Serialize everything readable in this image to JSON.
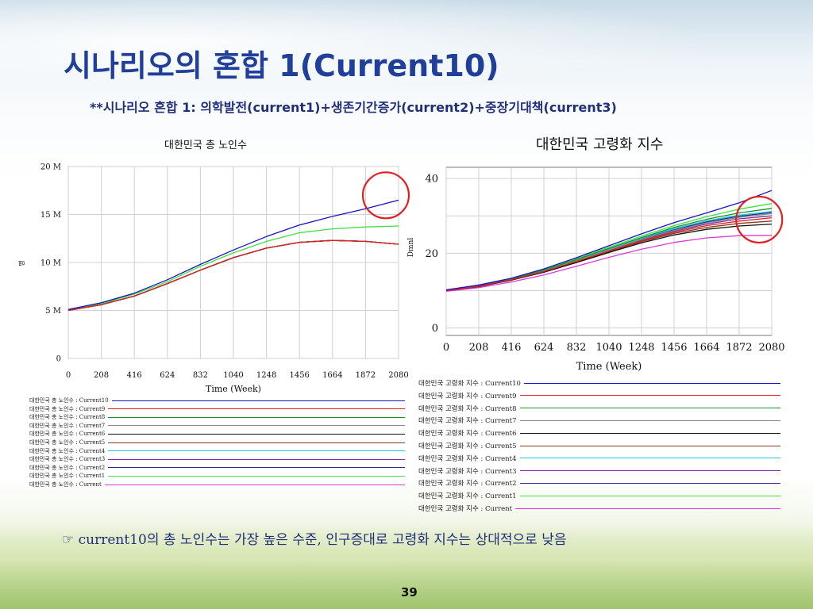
{
  "slide": {
    "title": "시나리오의 혼합 1(Current10)",
    "subtitle": "**시나리오 혼합 1: 의학발전(current1)+생존기간증가(current2)+중장기대책(current3)",
    "footnote": "☞ current10의 총 노인수는 가장 높은 수준, 인구증대로 고령화 지수는 상대적으로 낮음",
    "page_number": "39"
  },
  "chart_data": [
    {
      "type": "line",
      "title": "대한민국 총 노인수",
      "xlabel": "Time (Week)",
      "ylabel": "명",
      "xlim": [
        0,
        2080
      ],
      "ylim": [
        0,
        20000000
      ],
      "x_ticks": [
        "0",
        "208",
        "416",
        "624",
        "832",
        "1040",
        "1248",
        "1456",
        "1664",
        "1872",
        "2080"
      ],
      "y_ticks": [
        {
          "value": 0,
          "label": "0"
        },
        {
          "value": 5000000,
          "label": "5 M"
        },
        {
          "value": 10000000,
          "label": "10 M"
        },
        {
          "value": 15000000,
          "label": "15 M"
        },
        {
          "value": 20000000,
          "label": "20 M"
        }
      ],
      "grid": true,
      "x": [
        0,
        208,
        416,
        624,
        832,
        1040,
        1248,
        1456,
        1664,
        1872,
        2080
      ],
      "series": [
        {
          "name": "대한민국 총 노인수 : Current10",
          "color": "#1515c8",
          "values": [
            5100000,
            5800000,
            6800000,
            8200000,
            9800000,
            11300000,
            12700000,
            13900000,
            14800000,
            15600000,
            16500000
          ]
        },
        {
          "name": "대한민국 총 노인수 : Current9",
          "color": "#e02020",
          "values": [
            5000000,
            5600000,
            6500000,
            7800000,
            9200000,
            10500000,
            11500000,
            12100000,
            12300000,
            12200000,
            11900000
          ]
        },
        {
          "name": "대한민국 총 노인수 : Current8",
          "color": "#1a8f2e",
          "values": [
            5000000,
            5600000,
            6500000,
            7800000,
            9200000,
            10500000,
            11500000,
            12100000,
            12300000,
            12200000,
            11900000
          ]
        },
        {
          "name": "대한민국 총 노인수 : Current7",
          "color": "#8a8a8a",
          "values": [
            5000000,
            5600000,
            6500000,
            7800000,
            9200000,
            10500000,
            11500000,
            12100000,
            12300000,
            12200000,
            11900000
          ]
        },
        {
          "name": "대한민국 총 노인수 : Current6",
          "color": "#111111",
          "values": [
            5000000,
            5600000,
            6500000,
            7800000,
            9200000,
            10500000,
            11500000,
            12100000,
            12300000,
            12200000,
            11900000
          ]
        },
        {
          "name": "대한민국 총 노인수 : Current5",
          "color": "#8b3a1f",
          "values": [
            5000000,
            5600000,
            6500000,
            7800000,
            9200000,
            10500000,
            11500000,
            12100000,
            12300000,
            12200000,
            11900000
          ]
        },
        {
          "name": "대한민국 총 노인수 : Current4",
          "color": "#19c9d6",
          "values": [
            5000000,
            5600000,
            6500000,
            7800000,
            9200000,
            10500000,
            11500000,
            12100000,
            12300000,
            12200000,
            11900000
          ]
        },
        {
          "name": "대한민국 총 노인수 : Current3",
          "color": "#7a2fa8",
          "values": [
            5000000,
            5600000,
            6500000,
            7800000,
            9200000,
            10500000,
            11500000,
            12100000,
            12300000,
            12200000,
            11900000
          ]
        },
        {
          "name": "대한민국 총 노인수 : Current2",
          "color": "#2a2a90",
          "values": [
            5000000,
            5600000,
            6500000,
            7800000,
            9200000,
            10500000,
            11500000,
            12100000,
            12300000,
            12200000,
            11900000
          ]
        },
        {
          "name": "대한민국 총 노인수 : Current1",
          "color": "#3fe03f",
          "values": [
            5050000,
            5700000,
            6700000,
            8000000,
            9600000,
            11000000,
            12200000,
            13100000,
            13500000,
            13700000,
            13800000
          ]
        },
        {
          "name": "대한민국 총 노인수 : Current",
          "color": "#d83cd8",
          "values": [
            5000000,
            5600000,
            6500000,
            7800000,
            9200000,
            10500000,
            11500000,
            12100000,
            12300000,
            12200000,
            11900000
          ]
        }
      ],
      "annotations": [
        {
          "type": "circle",
          "color": "#e02020",
          "x": 2000,
          "y": 17000000
        }
      ]
    },
    {
      "type": "line",
      "title": "대한민국 고령화 지수",
      "xlabel": "Time (Week)",
      "ylabel": "Dmnl",
      "xlim": [
        0,
        2080
      ],
      "ylim": [
        -2,
        43
      ],
      "x_ticks": [
        "0",
        "208",
        "416",
        "624",
        "832",
        "1040",
        "1248",
        "1456",
        "1664",
        "1872",
        "2080"
      ],
      "y_ticks": [
        {
          "value": 0,
          "label": "0"
        },
        {
          "value": 20,
          "label": "20"
        },
        {
          "value": 40,
          "label": "40"
        }
      ],
      "grid": true,
      "x": [
        0,
        208,
        416,
        624,
        832,
        1040,
        1248,
        1456,
        1664,
        1872,
        2080
      ],
      "series": [
        {
          "name": "대한민국 고령화 지수 : Current10",
          "color": "#1515c8",
          "values": [
            10.2,
            11.5,
            13.3,
            15.8,
            18.8,
            22.0,
            25.2,
            28.2,
            30.8,
            33.5,
            36.8
          ]
        },
        {
          "name": "대한민국 고령화 지수 : Current9",
          "color": "#e02020",
          "values": [
            10.0,
            11.2,
            12.9,
            15.1,
            17.8,
            20.6,
            23.3,
            25.6,
            27.4,
            28.6,
            29.5
          ]
        },
        {
          "name": "대한민국 고령화 지수 : Current8",
          "color": "#1a8f2e",
          "values": [
            10.0,
            11.3,
            13.1,
            15.5,
            18.3,
            21.3,
            24.2,
            26.9,
            29.1,
            30.8,
            32.0
          ]
        },
        {
          "name": "대한민국 고령화 지수 : Current7",
          "color": "#8a8a8a",
          "values": [
            10.0,
            11.2,
            13.0,
            15.3,
            18.0,
            20.9,
            23.7,
            26.1,
            28.1,
            29.6,
            30.6
          ]
        },
        {
          "name": "대한민국 고령화 지수 : Current6",
          "color": "#111111",
          "values": [
            10.0,
            11.1,
            12.8,
            14.9,
            17.5,
            20.2,
            22.8,
            24.9,
            26.4,
            27.3,
            27.8
          ]
        },
        {
          "name": "대한민국 고령화 지수 : Current5",
          "color": "#8b3a1f",
          "values": [
            10.0,
            11.1,
            12.8,
            15.0,
            17.6,
            20.4,
            23.1,
            25.3,
            26.9,
            28.0,
            28.6
          ]
        },
        {
          "name": "대한민국 고령화 지수 : Current4",
          "color": "#19c9d6",
          "values": [
            10.0,
            11.3,
            13.1,
            15.4,
            18.2,
            21.1,
            24.0,
            26.6,
            28.7,
            30.2,
            31.2
          ]
        },
        {
          "name": "대한민국 고령화 지수 : Current3",
          "color": "#7a2fa8",
          "values": [
            10.0,
            11.2,
            12.9,
            15.2,
            17.9,
            20.8,
            23.5,
            25.9,
            27.8,
            29.2,
            30.0
          ]
        },
        {
          "name": "대한민국 고령화 지수 : Current2",
          "color": "#2a2a90",
          "values": [
            10.0,
            11.2,
            13.0,
            15.3,
            18.1,
            21.0,
            23.8,
            26.3,
            28.4,
            29.9,
            30.9
          ]
        },
        {
          "name": "대한민국 고령화 지수 : Current1",
          "color": "#3fe03f",
          "values": [
            10.0,
            11.3,
            13.2,
            15.6,
            18.5,
            21.6,
            24.6,
            27.4,
            29.8,
            31.8,
            33.3
          ]
        },
        {
          "name": "대한민국 고령화 지수 : Current",
          "color": "#d83cd8",
          "values": [
            9.8,
            10.8,
            12.3,
            14.2,
            16.5,
            18.9,
            21.1,
            22.9,
            24.1,
            24.7,
            24.8
          ]
        }
      ],
      "annotations": [
        {
          "type": "circle",
          "color": "#e02020",
          "x": 2000,
          "y": 29
        }
      ]
    }
  ]
}
